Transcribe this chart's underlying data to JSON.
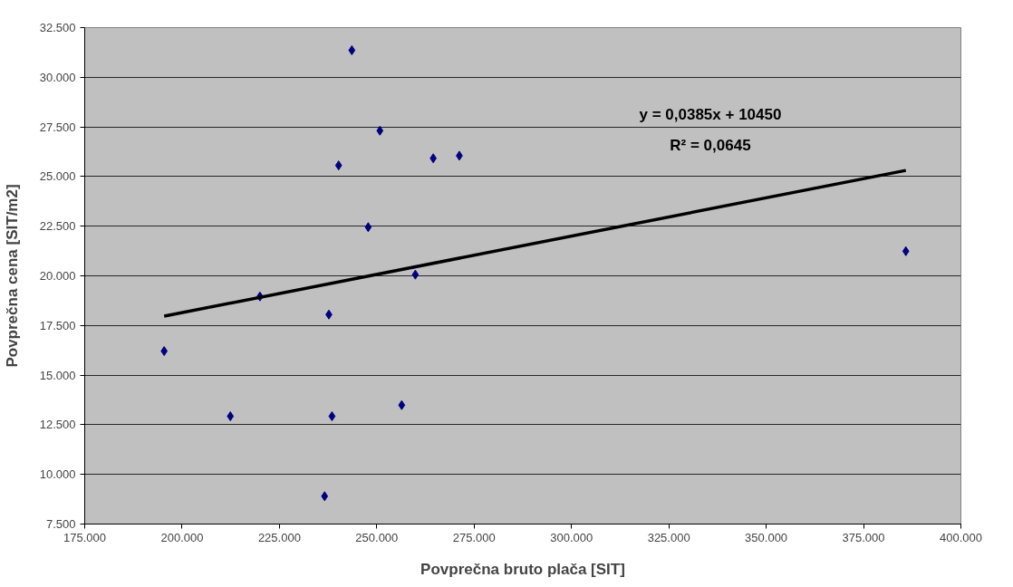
{
  "chart_data": {
    "type": "scatter",
    "xlabel": "Povprečna bruto plača [SIT]",
    "ylabel": "Povprečna cena [SIT/m2]",
    "x": [
      243600,
      250800,
      240200,
      264500,
      271200,
      247800,
      259900,
      220000,
      237700,
      195400,
      212400,
      238500,
      256400,
      236600,
      385860
    ],
    "series": [
      {
        "color": "#000080",
        "marker": "diamond",
        "values": [
          31360,
          27310,
          25560,
          25920,
          26050,
          22450,
          20060,
          18960,
          18050,
          16210,
          12930,
          12930,
          13490,
          8900,
          21240
        ]
      },
      {
        "type": "line",
        "color": "#000000",
        "line_style": "solid",
        "x": [
          195400,
          385860
        ],
        "values": [
          17970,
          25310
        ]
      }
    ],
    "annotations": [
      "y = 0,0385x + 10450",
      "R² = 0,0645"
    ],
    "xlim": [
      175000,
      400000
    ],
    "xticks": [
      {
        "value": 175000,
        "label": "175.000"
      },
      {
        "value": 200000,
        "label": "200.000"
      },
      {
        "value": 225000,
        "label": "225.000"
      },
      {
        "value": 250000,
        "label": "250.000"
      },
      {
        "value": 275000,
        "label": "275.000"
      },
      {
        "value": 300000,
        "label": "300.000"
      },
      {
        "value": 325000,
        "label": "325.000"
      },
      {
        "value": 350000,
        "label": "350.000"
      },
      {
        "value": 375000,
        "label": "375.000"
      },
      {
        "value": 400000,
        "label": "400.000"
      }
    ],
    "ylim": [
      7500,
      32500
    ],
    "yticks": [
      {
        "value": 7500,
        "label": "7.500"
      },
      {
        "value": 10000,
        "label": "10.000"
      },
      {
        "value": 12500,
        "label": "12.500"
      },
      {
        "value": 15000,
        "label": "15.000"
      },
      {
        "value": 17500,
        "label": "17.500"
      },
      {
        "value": 20000,
        "label": "20.000"
      },
      {
        "value": 22500,
        "label": "22.500"
      },
      {
        "value": 25000,
        "label": "25.000"
      },
      {
        "value": 27500,
        "label": "27.500"
      },
      {
        "value": 30000,
        "label": "30.000"
      },
      {
        "value": 32500,
        "label": "32.500"
      }
    ],
    "grid": "y"
  }
}
